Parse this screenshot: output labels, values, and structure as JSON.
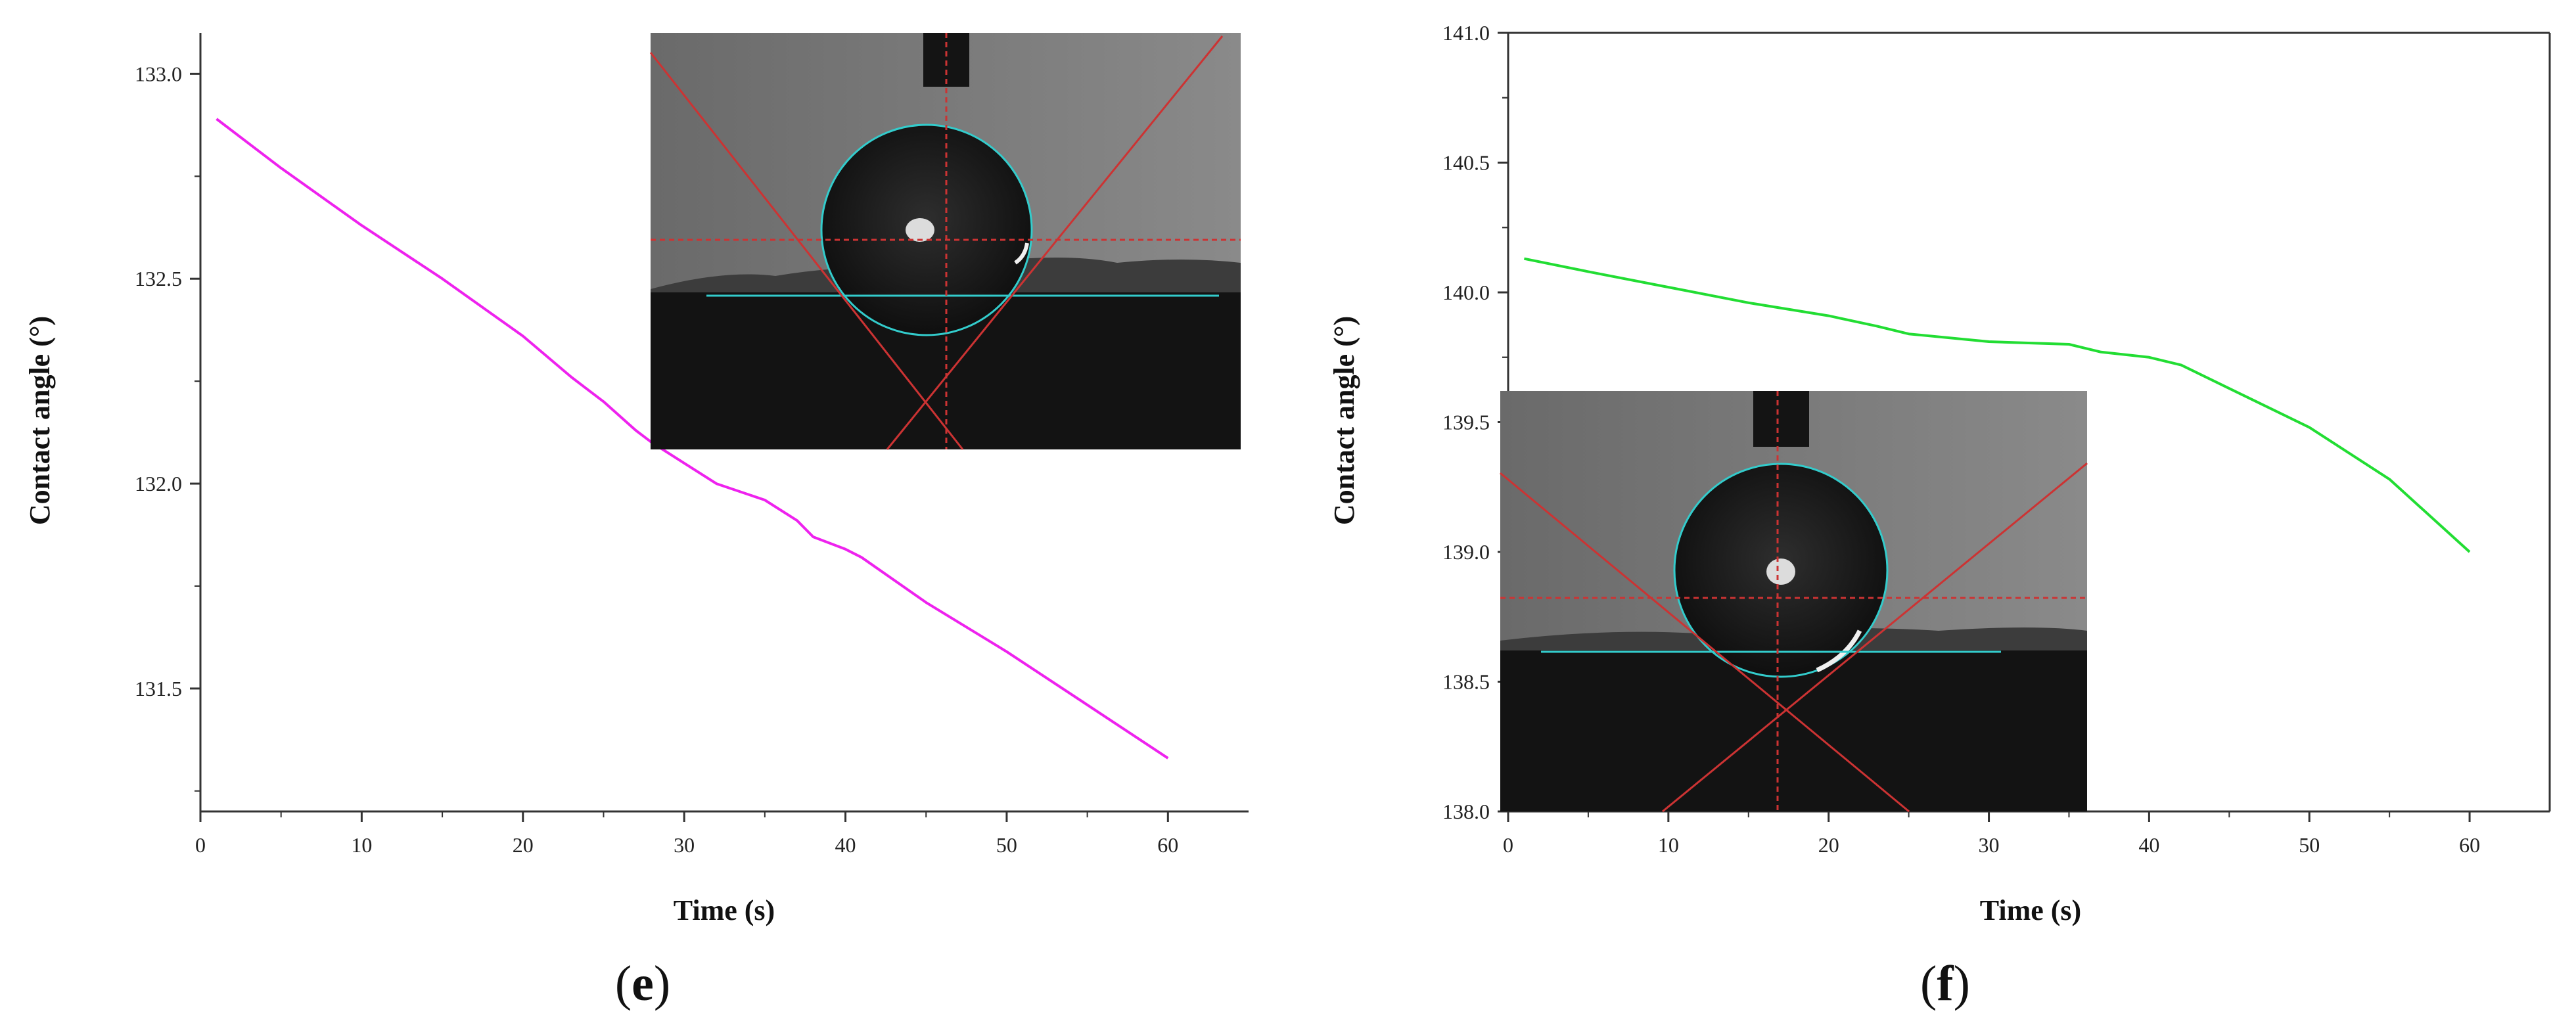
{
  "chart_data": [
    {
      "type": "line",
      "panel_label": "e",
      "xlabel": "Time (s)",
      "ylabel": "Contact angle (°)",
      "xlim": [
        0,
        65
      ],
      "ylim": [
        131.2,
        133.1
      ],
      "xticks": [
        0,
        10,
        20,
        30,
        40,
        50,
        60
      ],
      "yticks": [
        131.5,
        132.0,
        132.5,
        133.0
      ],
      "ytick_labels": [
        "131.5",
        "132.0",
        "132.5",
        "133.0"
      ],
      "line_color": "#ee22ee",
      "grid": false,
      "inset": "droplet photograph (upper right)",
      "series": [
        {
          "x": [
            1,
            5,
            10,
            15,
            20,
            23,
            25,
            27,
            28,
            30,
            32,
            35,
            37,
            38,
            40,
            41,
            45,
            50,
            55,
            60
          ],
          "y": [
            132.89,
            132.77,
            132.63,
            132.5,
            132.36,
            132.26,
            132.2,
            132.13,
            132.1,
            132.05,
            132.0,
            131.96,
            131.91,
            131.87,
            131.84,
            131.82,
            131.71,
            131.59,
            131.46,
            131.33
          ]
        }
      ]
    },
    {
      "type": "line",
      "panel_label": "f",
      "xlabel": "Time (s)",
      "ylabel": "Contact angle (°)",
      "xlim": [
        0,
        65
      ],
      "ylim": [
        138.0,
        141.0
      ],
      "xticks": [
        0,
        10,
        20,
        30,
        40,
        50,
        60
      ],
      "yticks": [
        138.0,
        138.5,
        139.0,
        139.5,
        140.0,
        140.5,
        141.0
      ],
      "ytick_labels": [
        "138.0",
        "138.5",
        "139.0",
        "139.5",
        "140.0",
        "140.5",
        "141.0"
      ],
      "line_color": "#22dd33",
      "grid": false,
      "inset": "droplet photograph (lower left)",
      "series": [
        {
          "x": [
            1,
            5,
            10,
            15,
            20,
            23,
            25,
            30,
            35,
            37,
            40,
            42,
            45,
            50,
            55,
            60
          ],
          "y": [
            140.13,
            140.08,
            140.02,
            139.96,
            139.91,
            139.87,
            139.84,
            139.81,
            139.8,
            139.77,
            139.75,
            139.72,
            139.63,
            139.48,
            139.28,
            139.0
          ]
        }
      ]
    }
  ]
}
